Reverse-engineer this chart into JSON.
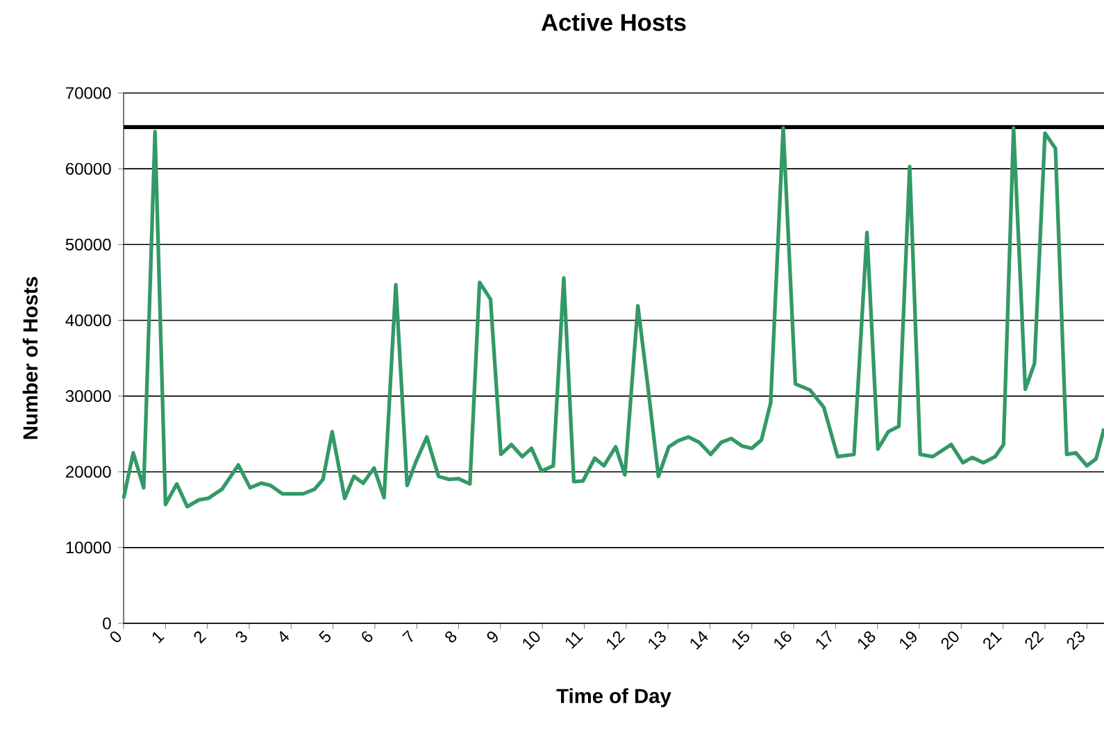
{
  "chart_data": {
    "type": "line",
    "title": "Active Hosts",
    "xlabel": "Time of Day",
    "ylabel": "Number of Hosts",
    "series": [
      {
        "color": "#339966",
        "x": [
          0,
          0.23,
          0.48,
          0.75,
          1.0,
          1.27,
          1.52,
          1.8,
          2.02,
          2.35,
          2.74,
          3.02,
          3.29,
          3.51,
          3.79,
          4.29,
          4.56,
          4.76,
          4.98,
          5.28,
          5.5,
          5.72,
          5.98,
          6.22,
          6.5,
          6.77,
          6.97,
          7.24,
          7.52,
          7.77,
          7.99,
          8.27,
          8.5,
          8.76,
          9.01,
          9.26,
          9.52,
          9.74,
          9.98,
          10.26,
          10.51,
          10.75,
          10.97,
          11.25,
          11.47,
          11.75,
          11.97,
          12.28,
          12.52,
          12.77,
          13.02,
          13.24,
          13.49,
          13.74,
          14.02,
          14.27,
          14.51,
          14.77,
          15.0,
          15.23,
          15.45,
          15.75,
          16.04,
          16.39,
          16.72,
          17.05,
          17.44,
          17.75,
          18.01,
          18.26,
          18.51,
          18.77,
          19.02,
          19.32,
          19.76,
          20.04,
          20.26,
          20.53,
          20.81,
          21.01,
          21.25,
          21.53,
          21.75,
          22.0,
          22.25,
          22.52,
          22.74,
          23.0,
          23.22,
          23.41
        ],
        "values": [
          16500,
          22500,
          17900,
          64900,
          15700,
          18400,
          15400,
          16300,
          16500,
          17700,
          20900,
          17900,
          18500,
          18200,
          17100,
          17100,
          17700,
          19000,
          25300,
          16500,
          19400,
          18500,
          20500,
          16600,
          44700,
          18200,
          21200,
          24600,
          19400,
          19000,
          19100,
          18400,
          45000,
          42800,
          22300,
          23600,
          22000,
          23100,
          20100,
          20800,
          45600,
          18700,
          18800,
          21800,
          20800,
          23300,
          19600,
          41900,
          31200,
          19400,
          23300,
          24100,
          24600,
          23900,
          22300,
          23900,
          24400,
          23400,
          23100,
          24200,
          29100,
          65400,
          31600,
          30800,
          28500,
          22000,
          22300,
          51600,
          23000,
          25300,
          26000,
          60300,
          22300,
          22000,
          23600,
          21200,
          21900,
          21200,
          22000,
          23600,
          65400,
          30900,
          34300,
          64700,
          62700,
          22300,
          22500,
          20800,
          21700,
          25700
        ]
      }
    ],
    "xlim": [
      0,
      23.41
    ],
    "xticks": [
      0,
      1,
      2,
      3,
      4,
      5,
      6,
      7,
      8,
      9,
      10,
      11,
      12,
      13,
      14,
      15,
      16,
      17,
      18,
      19,
      20,
      21,
      22,
      23
    ],
    "ylim": [
      0,
      70000
    ],
    "yticks": [
      0,
      10000,
      20000,
      30000,
      40000,
      50000,
      60000,
      70000
    ],
    "grid": "y",
    "ref_lines": [
      {
        "axis": "y",
        "value": 65500,
        "color": "#000000"
      }
    ]
  }
}
